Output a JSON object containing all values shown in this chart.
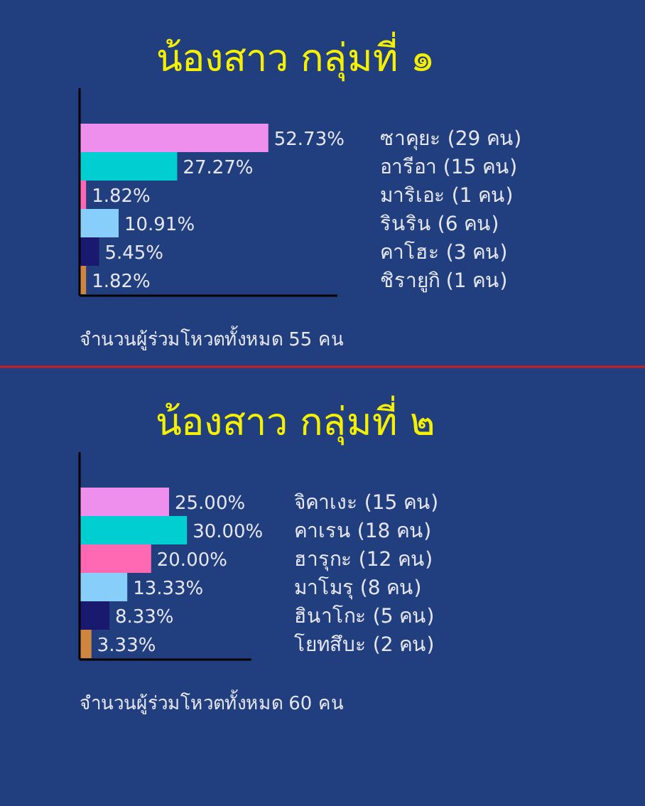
{
  "chart_data": [
    {
      "type": "bar",
      "orientation": "horizontal",
      "title": "น้องสาว กลุ่มที่ ๑",
      "categories": [
        "ซาคุยะ (29 คน)",
        "อารีอา (15 คน)",
        "มาริเอะ (1 คน)",
        "รินริน (6 คน)",
        "คาโฮะ (3 คน)",
        "ชิรายูกิ (1 คน)"
      ],
      "values": [
        52.73,
        27.27,
        1.82,
        10.91,
        5.45,
        1.82
      ],
      "value_labels": [
        "52.73%",
        "27.27%",
        "1.82%",
        "10.91%",
        "5.45%",
        "1.82%"
      ],
      "colors": [
        "#ee8fee",
        "#00ced1",
        "#ff69b4",
        "#87cefa",
        "#191970",
        "#cd853f"
      ],
      "xlim": [
        0,
        72
      ],
      "annotations": [
        "จำนวนผู้ร่วมโหวตทั้งหมด 55 คน"
      ]
    },
    {
      "type": "bar",
      "orientation": "horizontal",
      "title": "น้องสาว กลุ่มที่ ๒",
      "categories": [
        "จิคาเงะ (15 คน)",
        "คาเรน (18 คน)",
        "ฮารุกะ (12 คน)",
        "มาโมรุ (8 คน)",
        "ฮินาโกะ (5 คน)",
        "โยทสึบะ (2 คน)"
      ],
      "values": [
        25.0,
        30.0,
        20.0,
        13.33,
        8.33,
        3.33
      ],
      "value_labels": [
        "25.00%",
        "30.00%",
        "20.00%",
        "13.33%",
        "8.33%",
        "3.33%"
      ],
      "colors": [
        "#ee8fee",
        "#00ced1",
        "#ff69b4",
        "#87cefa",
        "#191970",
        "#cd853f"
      ],
      "xlim": [
        0,
        48
      ],
      "annotations": [
        "จำนวนผู้ร่วมโหวตทั้งหมด 60 คน"
      ]
    }
  ]
}
